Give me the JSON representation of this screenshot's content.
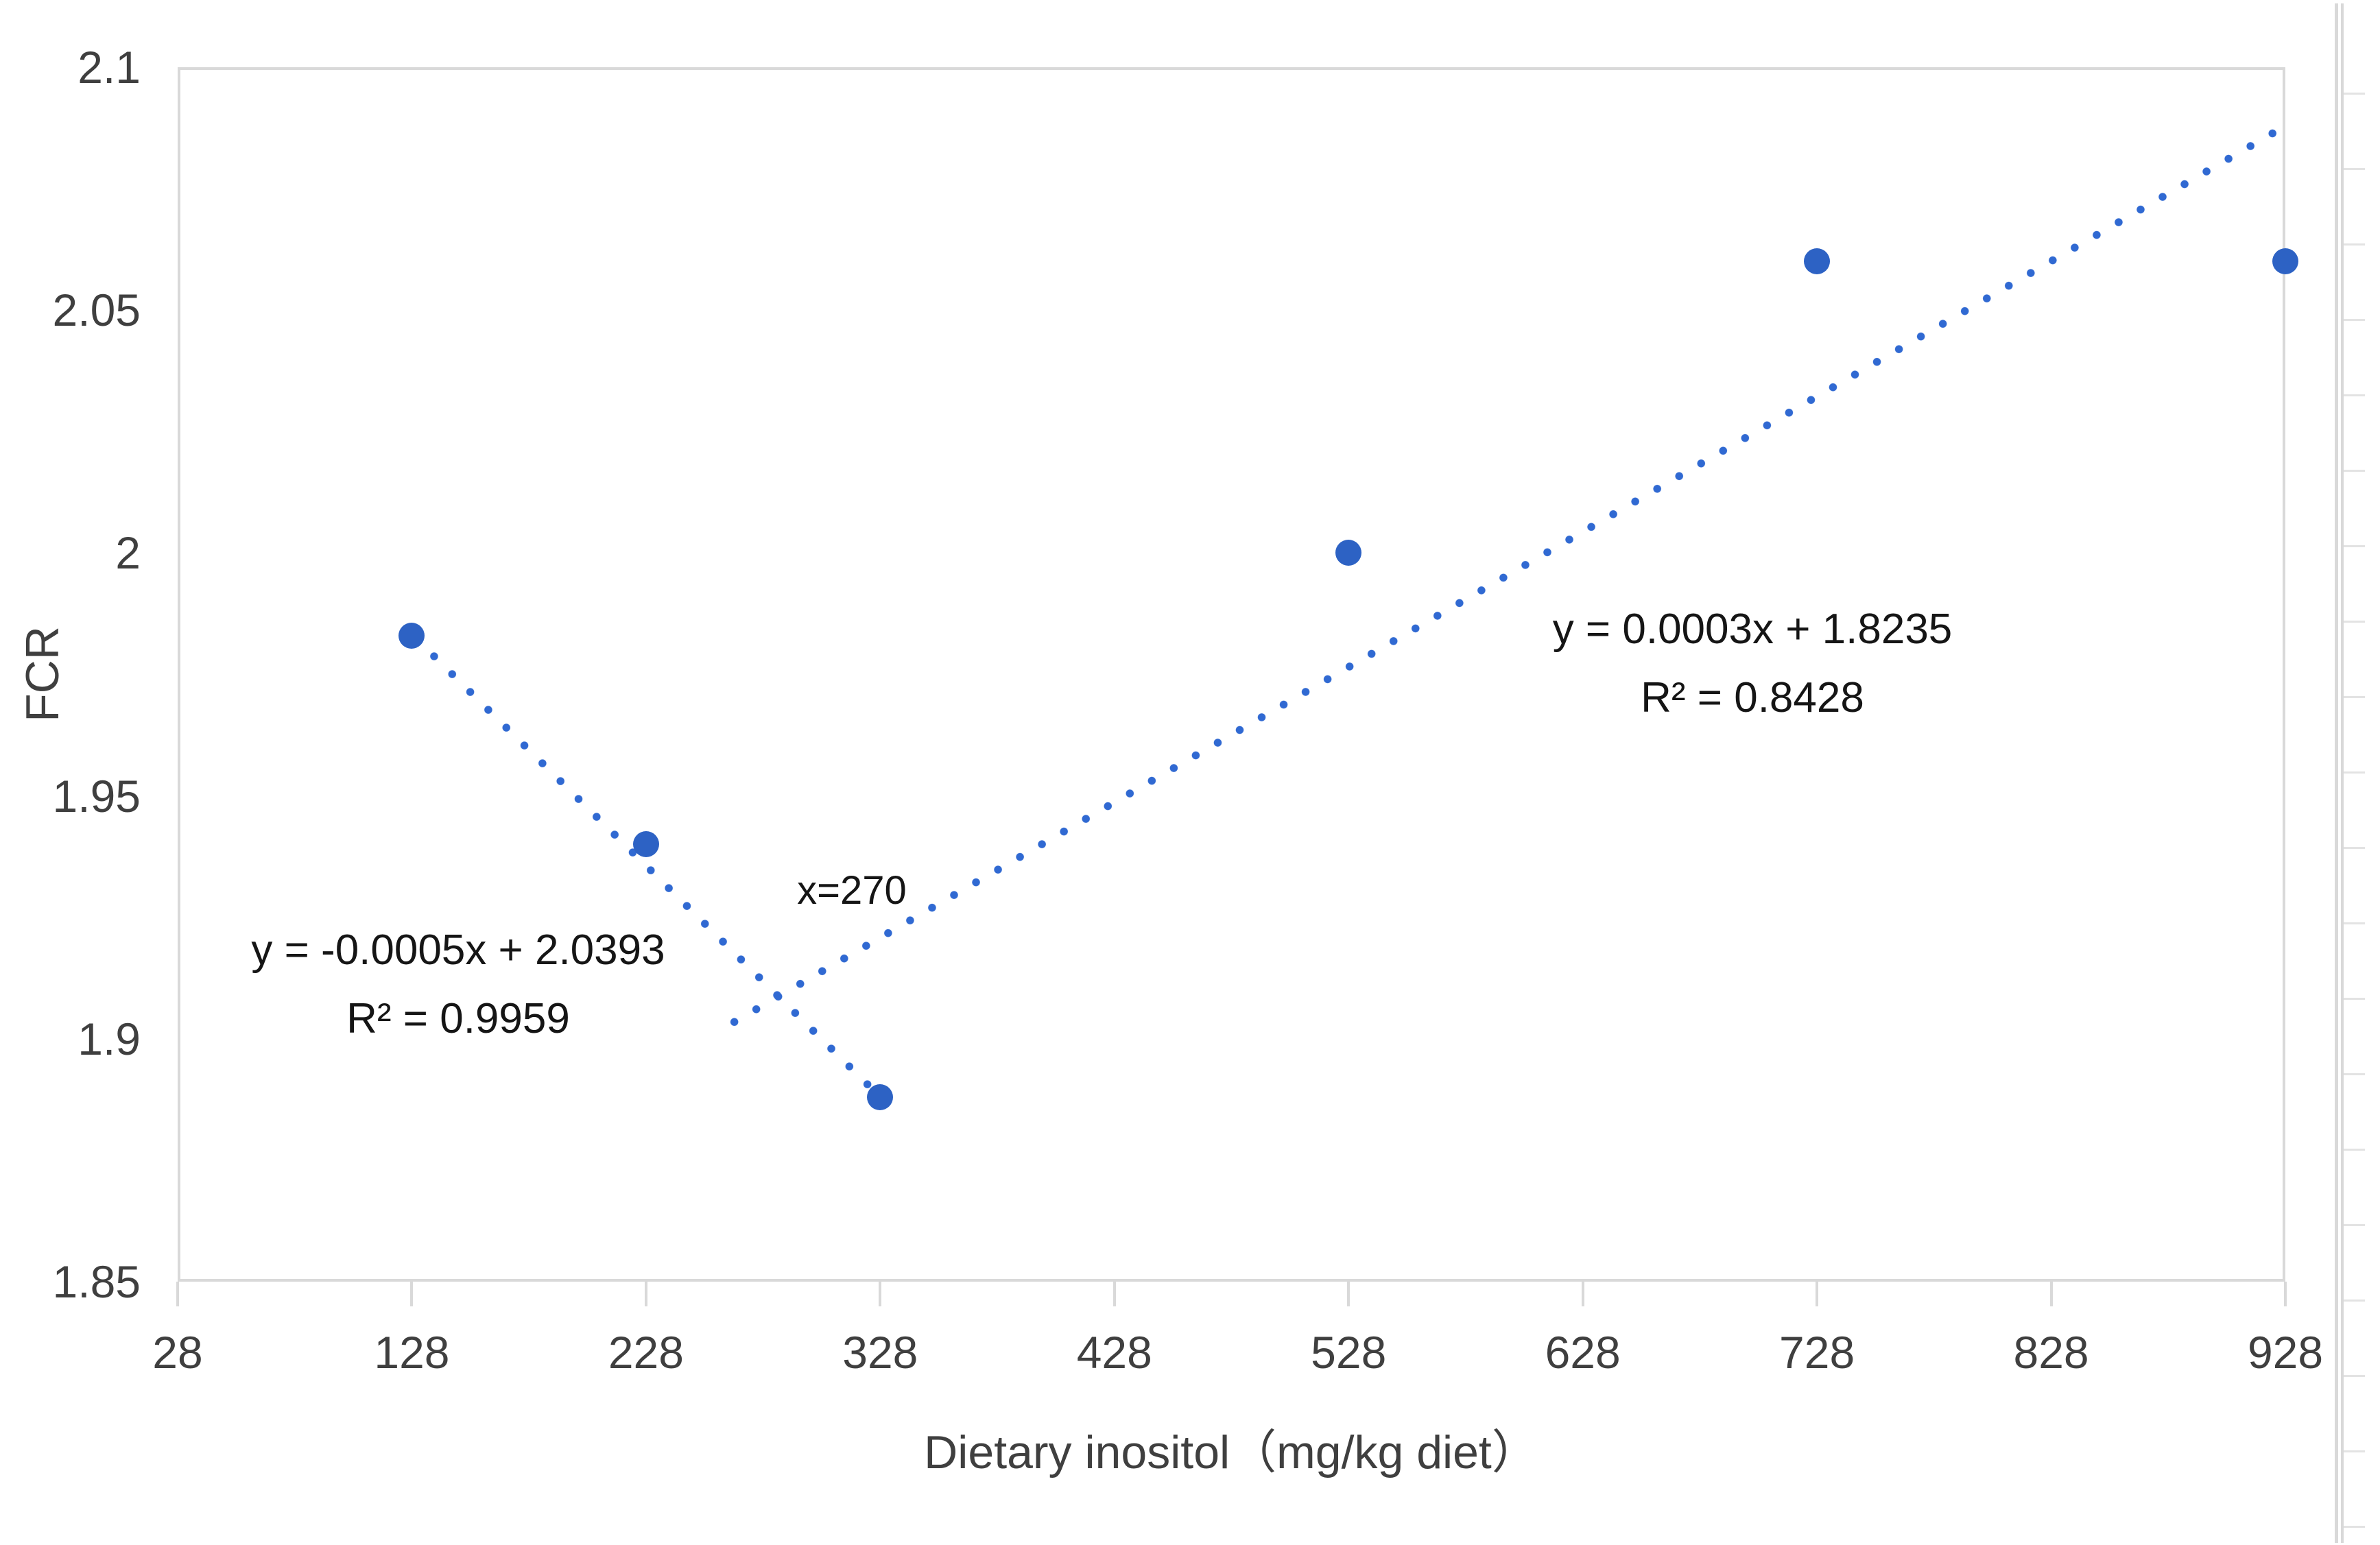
{
  "chart_data": {
    "type": "scatter",
    "title": "",
    "xlabel": "Dietary inositol（mg/kg diet）",
    "ylabel": "FCR",
    "xlim": [
      28,
      928
    ],
    "ylim": [
      1.85,
      2.1
    ],
    "x_ticks": [
      28,
      128,
      228,
      328,
      428,
      528,
      628,
      728,
      828,
      928
    ],
    "y_ticks": [
      1.85,
      1.9,
      1.95,
      2,
      2.05,
      2.1
    ],
    "y_tick_labels": [
      "1.85",
      "1.9",
      "1.95",
      "2",
      "2.05",
      "2.1"
    ],
    "grid": false,
    "legend_position": "none",
    "points": [
      {
        "x": 128,
        "y": 1.983
      },
      {
        "x": 228,
        "y": 1.94
      },
      {
        "x": 328,
        "y": 1.888
      },
      {
        "x": 528,
        "y": 2.0
      },
      {
        "x": 728,
        "y": 2.06
      },
      {
        "x": 928,
        "y": 2.06
      }
    ],
    "trendlines": [
      {
        "id": "descending",
        "style": "dotted",
        "equation": "y = -0.0005x + 2.0393",
        "r2": "R² = 0.9959",
        "x1": 128.5,
        "y1": 1.983,
        "x2": 328,
        "y2": 1.888
      },
      {
        "id": "ascending",
        "style": "dotted",
        "equation": "y = 0.0003x + 1.8235",
        "r2": "R² = 0.8428",
        "x1": 264,
        "y1": 1.903,
        "x2": 926.5,
        "y2": 2.0875
      }
    ],
    "annotations": [
      {
        "id": "crossing",
        "text": "x=270"
      }
    ],
    "colors": {
      "marker": "#2D62C4",
      "trendline": "#3069D2",
      "axis_line": "#D9D9D9",
      "tick_text": "#3F3F3F",
      "annotation_text": "#151515",
      "background": "#FFFFFF"
    }
  }
}
